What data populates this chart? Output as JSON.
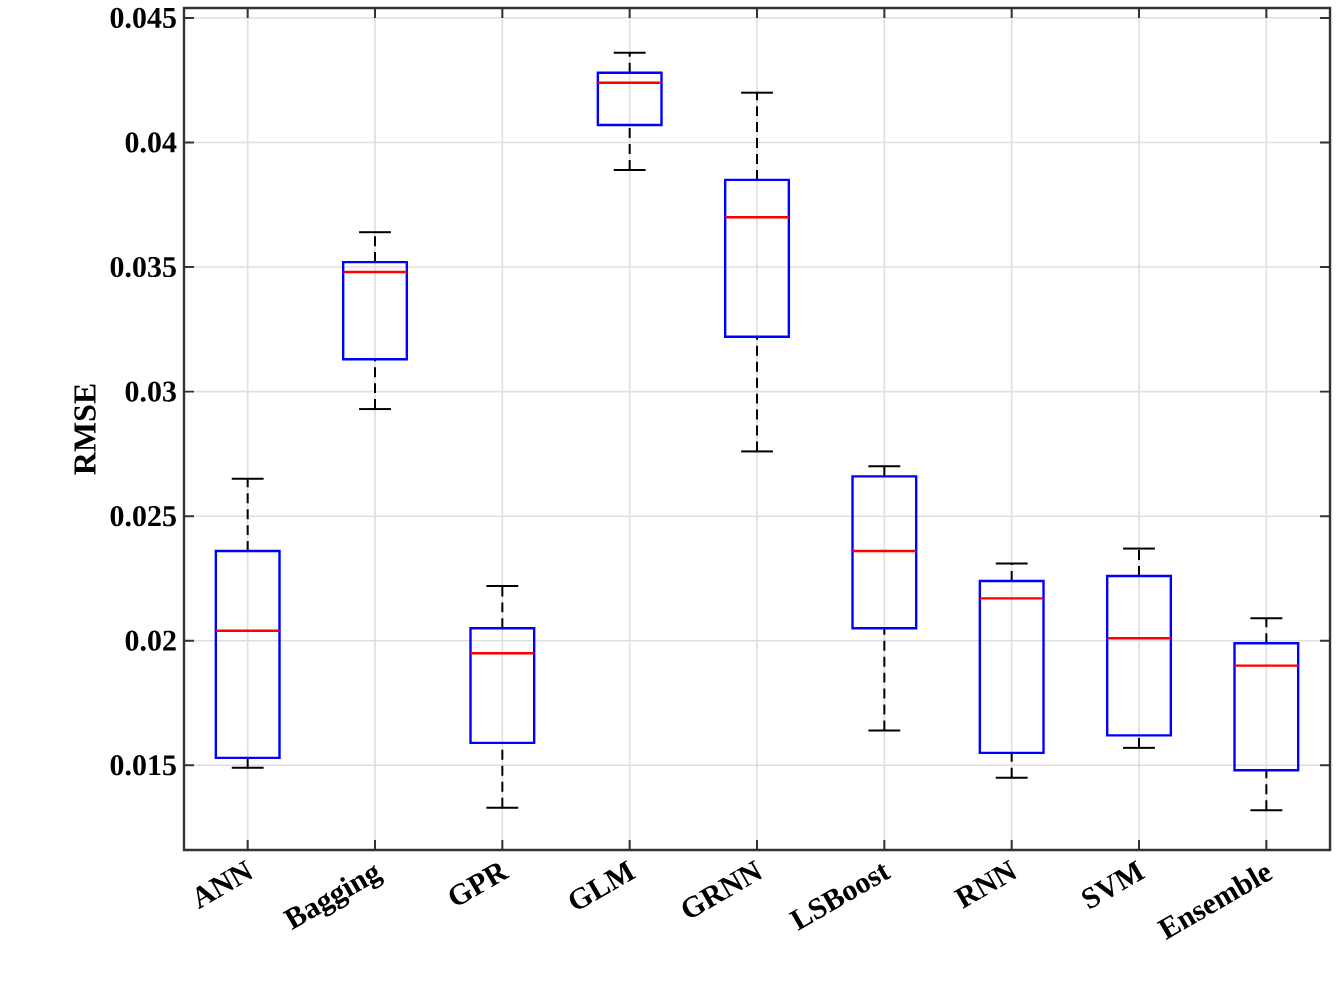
{
  "chart_data": {
    "type": "box",
    "ylabel": "RMSE",
    "categories": [
      "ANN",
      "Bagging",
      "GPR",
      "GLM",
      "GRNN",
      "LSBoost",
      "RNN",
      "SVM",
      "Ensemble"
    ],
    "series": [
      {
        "color": "#0000ff",
        "boxes": [
          {
            "low": 0.0149,
            "q1": 0.0153,
            "median": 0.0204,
            "q3": 0.0236,
            "high": 0.0265
          },
          {
            "low": 0.0293,
            "q1": 0.0313,
            "median": 0.0348,
            "q3": 0.0352,
            "high": 0.0364
          },
          {
            "low": 0.0133,
            "q1": 0.0159,
            "median": 0.0195,
            "q3": 0.0205,
            "high": 0.0222
          },
          {
            "low": 0.0389,
            "q1": 0.0407,
            "median": 0.0424,
            "q3": 0.0428,
            "high": 0.0436
          },
          {
            "low": 0.0276,
            "q1": 0.0322,
            "median": 0.037,
            "q3": 0.0385,
            "high": 0.042
          },
          {
            "low": 0.0164,
            "q1": 0.0205,
            "median": 0.0236,
            "q3": 0.0266,
            "high": 0.027
          },
          {
            "low": 0.0145,
            "q1": 0.0155,
            "median": 0.0217,
            "q3": 0.0224,
            "high": 0.0231
          },
          {
            "low": 0.0157,
            "q1": 0.0162,
            "median": 0.0201,
            "q3": 0.0226,
            "high": 0.0237
          },
          {
            "low": 0.0132,
            "q1": 0.0148,
            "median": 0.019,
            "q3": 0.0199,
            "high": 0.0209
          }
        ]
      }
    ],
    "ylim": [
      0.0116,
      0.0454
    ],
    "yticks": [
      0.015,
      0.02,
      0.025,
      0.03,
      0.035,
      0.04,
      0.045
    ],
    "grid": true
  }
}
